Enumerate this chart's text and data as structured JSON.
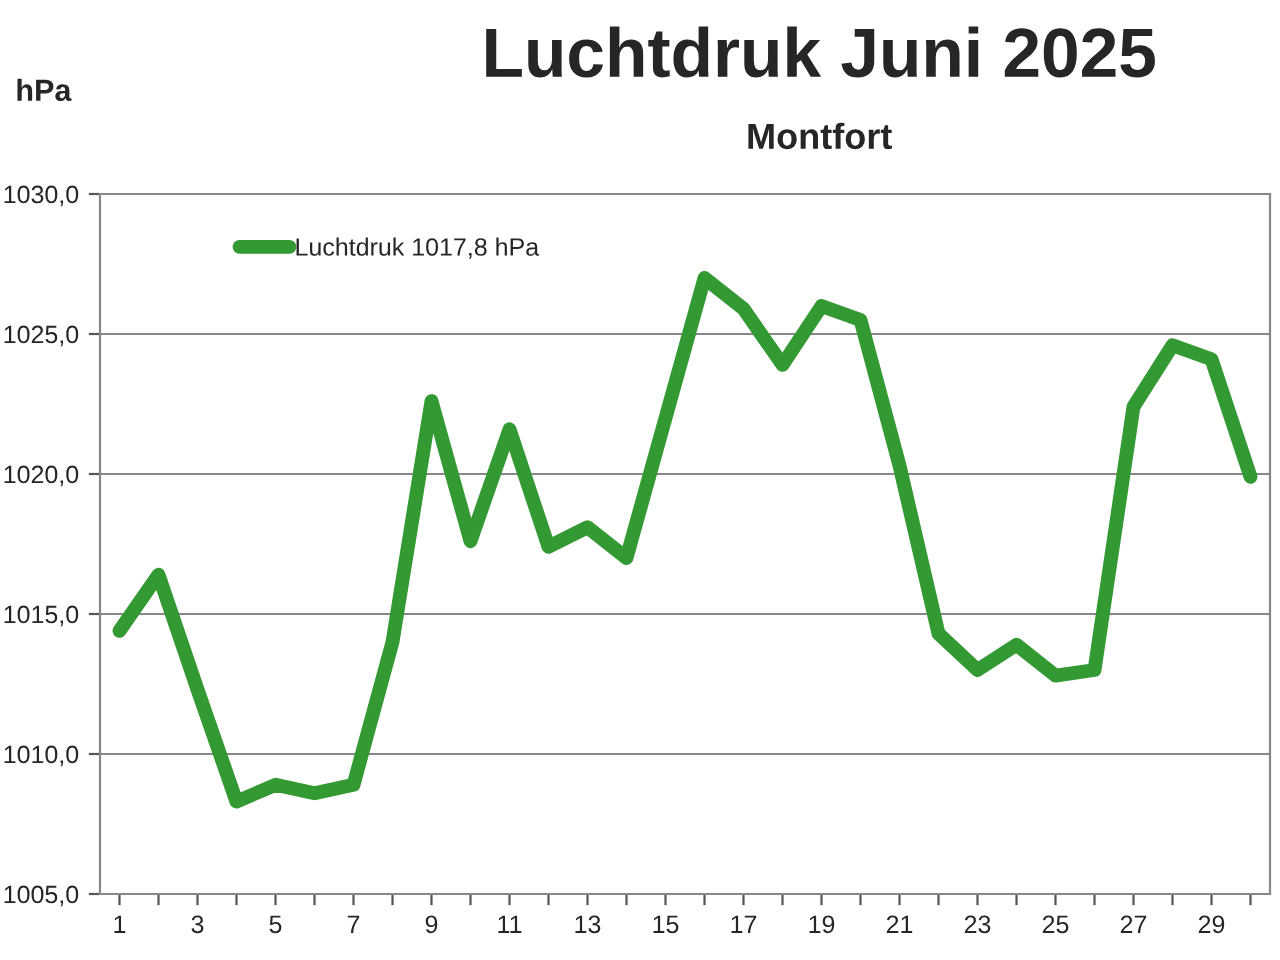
{
  "chart_data": {
    "type": "line",
    "title": "Luchtdruk Juni 2025",
    "subtitle": "Montfort",
    "ylabel": "hPa",
    "categories": [
      "1",
      null,
      "3",
      null,
      "5",
      null,
      "7",
      null,
      "9",
      null,
      "11",
      null,
      "13",
      null,
      "15",
      null,
      "17",
      null,
      "19",
      null,
      "21",
      null,
      "23",
      null,
      "25",
      null,
      "27",
      null,
      "29",
      null
    ],
    "series": [
      {
        "name": "Luchtdruk 1017,8 hPa",
        "color": "#339933",
        "values": [
          1014.4,
          1016.4,
          1012.3,
          1008.3,
          1008.9,
          1008.6,
          1008.9,
          1014.0,
          1022.6,
          1017.6,
          1021.6,
          1017.4,
          1018.1,
          1017.0,
          1022.0,
          1027.0,
          1025.9,
          1023.9,
          1026.0,
          1025.5,
          1020.3,
          1014.3,
          1013.0,
          1013.9,
          1012.8,
          1013.0,
          1022.4,
          1024.6,
          1024.1,
          1019.9
        ]
      }
    ],
    "ylim": [
      1005,
      1030
    ],
    "yticks": [
      {
        "value": 1005,
        "label": "1005,0"
      },
      {
        "value": 1010,
        "label": "1010,0"
      },
      {
        "value": 1015,
        "label": "1015,0"
      },
      {
        "value": 1020,
        "label": "1020,0"
      },
      {
        "value": 1025,
        "label": "1025,0"
      },
      {
        "value": 1030,
        "label": "1030,0"
      }
    ],
    "grid": "y",
    "legend": "top left",
    "marker": "none",
    "line_style": "solid"
  }
}
